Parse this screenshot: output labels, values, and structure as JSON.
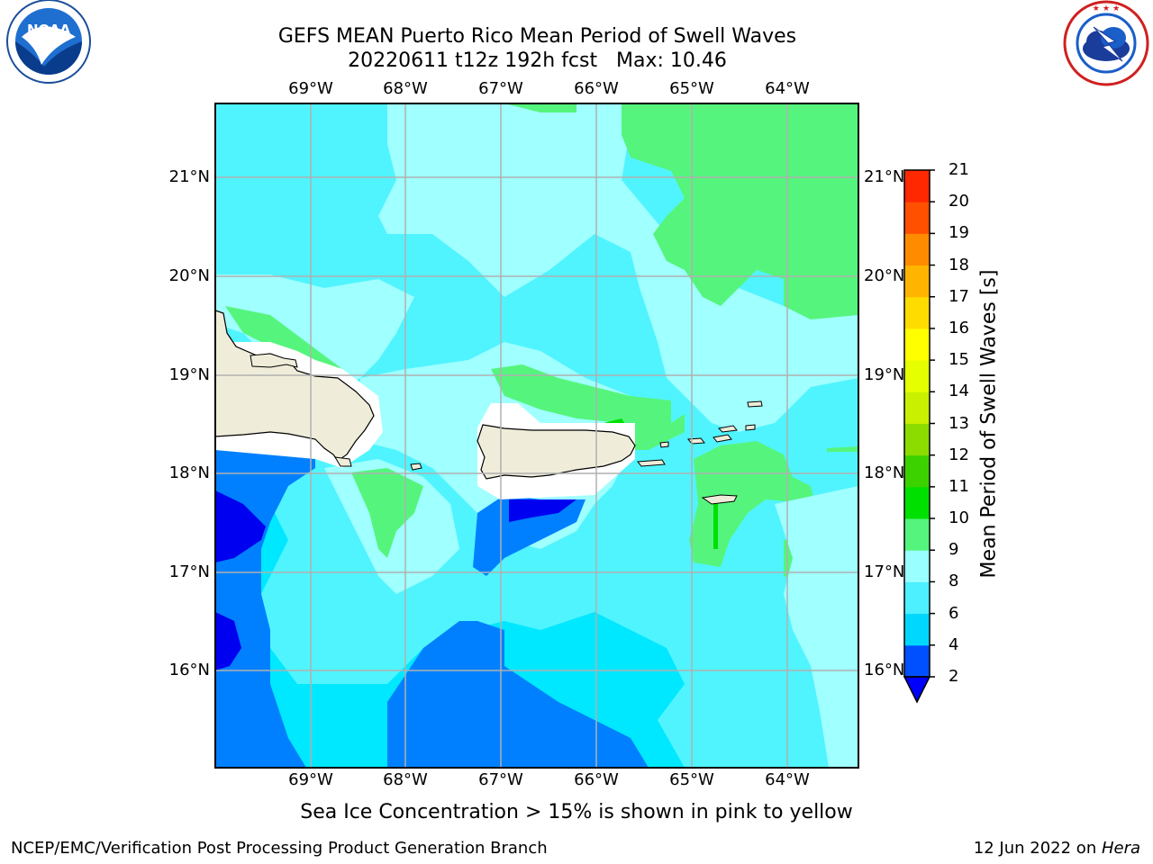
{
  "title": {
    "line1": "GEFS MEAN Puerto Rico Mean Period of Swell Waves",
    "line2": "20220611 t12z 192h fcst   Max: 10.46"
  },
  "logos": {
    "left": "noaa-logo",
    "left_text": "NOAA",
    "right": "national-weather-service-logo"
  },
  "axes": {
    "lon_ticks": [
      "69°W",
      "68°W",
      "67°W",
      "66°W",
      "65°W",
      "64°W"
    ],
    "lat_ticks": [
      "21°N",
      "20°N",
      "19°N",
      "18°N",
      "17°N",
      "16°N"
    ]
  },
  "colorbar": {
    "label": "Mean Period of Swell Waves [s]",
    "ticks": [
      "2",
      "4",
      "6",
      "8",
      "9",
      "10",
      "11",
      "12",
      "13",
      "14",
      "15",
      "16",
      "17",
      "18",
      "19",
      "20",
      "21"
    ],
    "colors": [
      "#0050ff",
      "#00d7ff",
      "#4cf0ff",
      "#9affff",
      "#55f57d",
      "#00e000",
      "#3cd200",
      "#8cdc00",
      "#c8f000",
      "#e6ff00",
      "#ffff00",
      "#ffdc00",
      "#ffb400",
      "#ff8c00",
      "#ff5000",
      "#ff2800"
    ],
    "under_color": "#0000ff"
  },
  "field_colors": {
    "deep": "#0000f0",
    "blue": "#0080ff",
    "cyan": "#00e8ff",
    "lightcyan": "#50f4ff",
    "paleblue": "#a0ffff",
    "green": "#55f57d",
    "brightgreen": "#00e000",
    "land": "#efedda",
    "grid": "#b0b0b0"
  },
  "note": "Sea Ice Concentration > 15% is shown in pink to yellow",
  "footer": {
    "left": "NCEP/EMC/Verification Post Processing Product Generation Branch",
    "right_date": "12 Jun 2022 on ",
    "right_host": "Hera"
  }
}
